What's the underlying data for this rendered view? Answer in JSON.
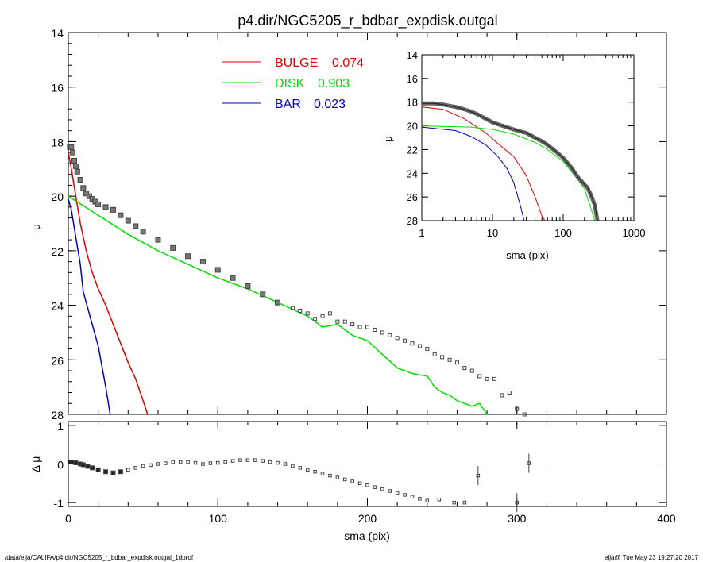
{
  "title": "p4.dir/NGC5205_r_bdbar_expdisk.outgal",
  "footer": {
    "left": "/data/eija/CALIFA/p4.dir/NGC5205_r_bdbar_expdisk.outgal_1dprof",
    "right": "eija@  Tue May 23 19:27:20 2017"
  },
  "colors": {
    "bulge": "#e00000",
    "disk": "#00e000",
    "bar": "#0000c8",
    "data": "#555555",
    "axes": "#000000"
  },
  "chart_data": [
    {
      "type": "line",
      "id": "main",
      "ylabel": "μ",
      "xlim": [
        0,
        400
      ],
      "ylim": [
        14,
        28
      ],
      "y_reversed": true,
      "yticks": [
        14,
        16,
        18,
        20,
        22,
        24,
        26,
        28
      ],
      "legend": [
        {
          "label": "BULGE",
          "value": "0.074",
          "color": "#e00000"
        },
        {
          "label": "DISK",
          "value": "0.903",
          "color": "#00e000"
        },
        {
          "label": "BAR",
          "value": "0.023",
          "color": "#0000c8"
        }
      ],
      "legend_placement": "top-center",
      "series": [
        {
          "name": "BULGE",
          "x": [
            0,
            2,
            5,
            8,
            12,
            16,
            20,
            25,
            30,
            35,
            40,
            45,
            50,
            53
          ],
          "y": [
            18.4,
            19.0,
            20.0,
            21.0,
            22.0,
            22.8,
            23.4,
            24.0,
            24.7,
            25.4,
            26.1,
            26.7,
            27.5,
            28.0
          ]
        },
        {
          "name": "DISK",
          "x": [
            0,
            20,
            40,
            60,
            80,
            100,
            120,
            140,
            160,
            170,
            180,
            190,
            200,
            210,
            220,
            230,
            240,
            245,
            250,
            255,
            260,
            265,
            270,
            275,
            280
          ],
          "y": [
            20.0,
            20.7,
            21.4,
            22.0,
            22.5,
            23.0,
            23.4,
            23.9,
            24.4,
            24.8,
            24.7,
            25.1,
            25.3,
            25.8,
            26.3,
            26.5,
            26.6,
            27.0,
            27.2,
            27.3,
            27.5,
            27.6,
            27.7,
            27.6,
            28.0
          ]
        },
        {
          "name": "BAR",
          "x": [
            0,
            2,
            5,
            8,
            10,
            15,
            20,
            25,
            28
          ],
          "y": [
            20.1,
            20.5,
            21.5,
            22.5,
            23.5,
            24.5,
            25.5,
            27.0,
            28.0
          ]
        },
        {
          "name": "data",
          "x": [
            1,
            2,
            3,
            4,
            5,
            6,
            8,
            10,
            12,
            14,
            16,
            18,
            20,
            25,
            30,
            35,
            40,
            45,
            50,
            60,
            70,
            80,
            90,
            100,
            110,
            120,
            130,
            140,
            150,
            155,
            160,
            165,
            170,
            175,
            180,
            185,
            190,
            195,
            200,
            205,
            210,
            215,
            220,
            225,
            230,
            235,
            240,
            245,
            250,
            255,
            260,
            265,
            270,
            275,
            280,
            285,
            290,
            295,
            300,
            305
          ],
          "y": [
            18.2,
            18.2,
            18.4,
            18.7,
            18.9,
            19.1,
            19.4,
            19.7,
            19.9,
            20.0,
            20.1,
            20.2,
            20.3,
            20.4,
            20.5,
            20.7,
            20.9,
            21.1,
            21.3,
            21.6,
            21.9,
            22.2,
            22.4,
            22.7,
            23.0,
            23.3,
            23.6,
            23.9,
            24.1,
            24.2,
            24.3,
            24.5,
            24.4,
            24.3,
            24.6,
            24.6,
            24.7,
            24.8,
            24.8,
            24.9,
            25.0,
            25.1,
            25.2,
            25.3,
            25.4,
            25.5,
            25.6,
            25.8,
            25.9,
            26.0,
            26.1,
            26.3,
            26.4,
            26.6,
            26.7,
            26.7,
            27.3,
            27.2,
            27.8,
            28.0
          ]
        }
      ]
    },
    {
      "type": "scatter",
      "id": "residual",
      "xlabel": "sma (pix)",
      "ylabel": "Δ μ",
      "xlim": [
        0,
        400
      ],
      "ylim": [
        -1.1,
        1.1
      ],
      "xticks": [
        0,
        100,
        200,
        300,
        400
      ],
      "yticks": [
        1,
        0,
        -1
      ],
      "zero_line": {
        "x": [
          0,
          320
        ],
        "y": 0
      },
      "series": [
        {
          "name": "residual",
          "x": [
            1,
            3,
            5,
            8,
            10,
            13,
            16,
            20,
            25,
            30,
            35,
            40,
            45,
            50,
            55,
            60,
            65,
            70,
            75,
            80,
            85,
            90,
            95,
            100,
            105,
            110,
            115,
            120,
            125,
            130,
            135,
            140,
            145,
            150,
            155,
            160,
            165,
            170,
            175,
            180,
            185,
            190,
            195,
            200,
            205,
            210,
            215,
            220,
            225,
            230,
            235,
            240,
            248,
            258,
            265,
            274,
            300,
            308
          ],
          "y": [
            0.05,
            0.05,
            0.03,
            0.0,
            -0.02,
            -0.06,
            -0.1,
            -0.15,
            -0.2,
            -0.23,
            -0.2,
            -0.15,
            -0.1,
            -0.05,
            -0.03,
            0.0,
            0.02,
            0.05,
            0.05,
            0.05,
            0.03,
            0.0,
            0.02,
            0.03,
            0.05,
            0.08,
            0.1,
            0.1,
            0.1,
            0.08,
            0.05,
            0.03,
            0.0,
            -0.05,
            -0.1,
            -0.15,
            -0.2,
            -0.25,
            -0.3,
            -0.35,
            -0.4,
            -0.45,
            -0.5,
            -0.55,
            -0.6,
            -0.65,
            -0.7,
            -0.75,
            -0.8,
            -0.85,
            -0.9,
            -0.95,
            -0.92,
            -1.0,
            -1.0,
            -0.3,
            -1.0,
            0.02
          ]
        }
      ]
    },
    {
      "type": "line",
      "id": "inset",
      "xlabel": "sma (pix)",
      "ylabel": "μ",
      "x_scale": "log",
      "xlim": [
        1,
        1000
      ],
      "ylim": [
        14,
        28
      ],
      "y_reversed": true,
      "xticks": [
        1,
        10,
        100,
        1000
      ],
      "yticks": [
        14,
        16,
        18,
        20,
        22,
        24,
        26,
        28
      ],
      "series": [
        {
          "name": "BULGE",
          "x": [
            1,
            2,
            4,
            8,
            12,
            20,
            30,
            40,
            50,
            55
          ],
          "y": [
            18.4,
            18.6,
            19.4,
            20.6,
            21.5,
            22.6,
            24.2,
            26.0,
            27.6,
            28.0
          ]
        },
        {
          "name": "DISK",
          "x": [
            1,
            5,
            10,
            20,
            40,
            60,
            100,
            150,
            200,
            280
          ],
          "y": [
            20.0,
            20.1,
            20.3,
            20.7,
            21.4,
            22.0,
            23.0,
            24.3,
            25.3,
            28.0
          ]
        },
        {
          "name": "BAR",
          "x": [
            1,
            3,
            5,
            8,
            12,
            16,
            20,
            25,
            28
          ],
          "y": [
            20.1,
            20.4,
            20.9,
            21.6,
            22.6,
            23.6,
            24.8,
            26.8,
            28.0
          ]
        },
        {
          "name": "data",
          "x": [
            1,
            1.5,
            2,
            3,
            4,
            5,
            6,
            8,
            10,
            14,
            20,
            30,
            40,
            50,
            60,
            80,
            100,
            130,
            160,
            190,
            220,
            250,
            280,
            305
          ],
          "y": [
            18.1,
            18.1,
            18.2,
            18.4,
            18.6,
            18.8,
            19.0,
            19.4,
            19.7,
            20.0,
            20.3,
            20.6,
            21.0,
            21.3,
            21.6,
            22.2,
            22.7,
            23.5,
            24.3,
            24.8,
            25.2,
            25.9,
            26.7,
            28.0
          ]
        }
      ]
    }
  ]
}
